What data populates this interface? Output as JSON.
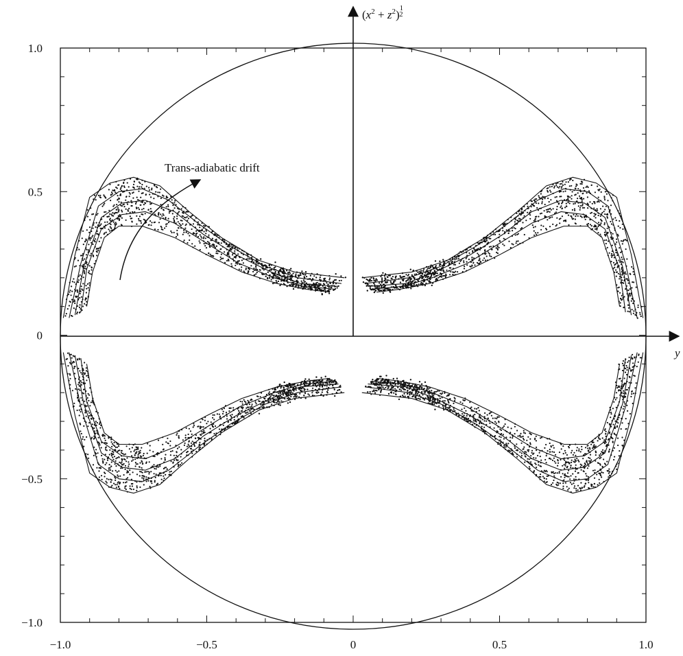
{
  "chart_data": {
    "type": "scatter",
    "title": "",
    "xlabel": "y",
    "ylabel_parts": {
      "open": "(",
      "x": "x",
      "two": "2",
      "plus": " + ",
      "z": "z",
      "close": ")",
      "exp_num": "1",
      "exp_den": "2"
    },
    "xlim": [
      -1.0,
      1.0
    ],
    "ylim": [
      -1.0,
      1.0
    ],
    "x_ticks": [
      {
        "value": -1.0,
        "label": "−1.0"
      },
      {
        "value": -0.5,
        "label": "−0.5"
      },
      {
        "value": 0,
        "label": "0"
      },
      {
        "value": 0.5,
        "label": "0.5"
      },
      {
        "value": 1.0,
        "label": "1.0"
      }
    ],
    "y_ticks": [
      {
        "value": 1.0,
        "label": "1.0"
      },
      {
        "value": 0.5,
        "label": "0.5"
      },
      {
        "value": 0,
        "label": "0"
      },
      {
        "value": -0.5,
        "label": "−0.5"
      },
      {
        "value": -1.0,
        "label": "−1.0"
      }
    ],
    "boundary": {
      "shape": "circle",
      "radius": 1.0
    },
    "annotation": {
      "text": "Trans-adiabatic drift",
      "at": [
        -0.66,
        0.56
      ],
      "arrow_from": [
        -0.8,
        0.2
      ],
      "arrow_to": [
        -0.54,
        0.54
      ]
    },
    "grid": false,
    "series": [
      {
        "region": "upper-left band",
        "curves": [
          [
            [
              -0.99,
              0.06
            ],
            [
              -0.95,
              0.28
            ],
            [
              -0.9,
              0.48
            ],
            [
              -0.83,
              0.53
            ],
            [
              -0.75,
              0.55
            ],
            [
              -0.66,
              0.52
            ],
            [
              -0.56,
              0.43
            ],
            [
              -0.45,
              0.34
            ],
            [
              -0.32,
              0.26
            ],
            [
              -0.2,
              0.22
            ],
            [
              -0.03,
              0.2
            ]
          ],
          [
            [
              -0.97,
              0.06
            ],
            [
              -0.93,
              0.25
            ],
            [
              -0.87,
              0.45
            ],
            [
              -0.8,
              0.5
            ],
            [
              -0.72,
              0.51
            ],
            [
              -0.63,
              0.47
            ],
            [
              -0.53,
              0.39
            ],
            [
              -0.42,
              0.31
            ],
            [
              -0.3,
              0.24
            ],
            [
              -0.19,
              0.2
            ],
            [
              -0.04,
              0.18
            ]
          ],
          [
            [
              -0.95,
              0.07
            ],
            [
              -0.92,
              0.24
            ],
            [
              -0.86,
              0.41
            ],
            [
              -0.79,
              0.46
            ],
            [
              -0.71,
              0.47
            ],
            [
              -0.61,
              0.43
            ],
            [
              -0.51,
              0.35
            ],
            [
              -0.4,
              0.28
            ],
            [
              -0.28,
              0.22
            ],
            [
              -0.18,
              0.18
            ],
            [
              -0.05,
              0.17
            ]
          ],
          [
            [
              -0.93,
              0.08
            ],
            [
              -0.91,
              0.23
            ],
            [
              -0.86,
              0.37
            ],
            [
              -0.79,
              0.42
            ],
            [
              -0.71,
              0.43
            ],
            [
              -0.61,
              0.39
            ],
            [
              -0.5,
              0.32
            ],
            [
              -0.39,
              0.25
            ],
            [
              -0.27,
              0.2
            ],
            [
              -0.17,
              0.17
            ],
            [
              -0.06,
              0.16
            ]
          ],
          [
            [
              -0.91,
              0.1
            ],
            [
              -0.89,
              0.22
            ],
            [
              -0.85,
              0.34
            ],
            [
              -0.8,
              0.38
            ],
            [
              -0.72,
              0.38
            ],
            [
              -0.61,
              0.34
            ],
            [
              -0.5,
              0.28
            ],
            [
              -0.38,
              0.22
            ],
            [
              -0.26,
              0.18
            ],
            [
              -0.16,
              0.16
            ],
            [
              -0.08,
              0.15
            ]
          ]
        ]
      },
      {
        "region": "upper-right band",
        "curves": [
          [
            [
              0.03,
              0.2
            ],
            [
              0.2,
              0.22
            ],
            [
              0.32,
              0.26
            ],
            [
              0.45,
              0.34
            ],
            [
              0.56,
              0.43
            ],
            [
              0.66,
              0.52
            ],
            [
              0.75,
              0.55
            ],
            [
              0.83,
              0.53
            ],
            [
              0.9,
              0.48
            ],
            [
              0.95,
              0.28
            ],
            [
              0.99,
              0.06
            ]
          ],
          [
            [
              0.04,
              0.18
            ],
            [
              0.19,
              0.2
            ],
            [
              0.3,
              0.24
            ],
            [
              0.42,
              0.31
            ],
            [
              0.53,
              0.39
            ],
            [
              0.63,
              0.47
            ],
            [
              0.72,
              0.51
            ],
            [
              0.8,
              0.5
            ],
            [
              0.87,
              0.45
            ],
            [
              0.93,
              0.25
            ],
            [
              0.97,
              0.06
            ]
          ],
          [
            [
              0.05,
              0.17
            ],
            [
              0.18,
              0.18
            ],
            [
              0.28,
              0.22
            ],
            [
              0.4,
              0.28
            ],
            [
              0.51,
              0.35
            ],
            [
              0.61,
              0.43
            ],
            [
              0.71,
              0.47
            ],
            [
              0.79,
              0.46
            ],
            [
              0.86,
              0.41
            ],
            [
              0.92,
              0.24
            ],
            [
              0.95,
              0.07
            ]
          ],
          [
            [
              0.06,
              0.16
            ],
            [
              0.17,
              0.17
            ],
            [
              0.27,
              0.2
            ],
            [
              0.39,
              0.25
            ],
            [
              0.5,
              0.32
            ],
            [
              0.61,
              0.39
            ],
            [
              0.71,
              0.43
            ],
            [
              0.79,
              0.42
            ],
            [
              0.86,
              0.37
            ],
            [
              0.91,
              0.23
            ],
            [
              0.93,
              0.08
            ]
          ],
          [
            [
              0.08,
              0.15
            ],
            [
              0.16,
              0.16
            ],
            [
              0.26,
              0.18
            ],
            [
              0.38,
              0.22
            ],
            [
              0.5,
              0.28
            ],
            [
              0.61,
              0.34
            ],
            [
              0.72,
              0.38
            ],
            [
              0.8,
              0.38
            ],
            [
              0.85,
              0.34
            ],
            [
              0.89,
              0.22
            ],
            [
              0.91,
              0.1
            ]
          ]
        ]
      },
      {
        "region": "lower-left band",
        "curves": [
          [
            [
              -0.99,
              -0.06
            ],
            [
              -0.95,
              -0.28
            ],
            [
              -0.9,
              -0.48
            ],
            [
              -0.83,
              -0.53
            ],
            [
              -0.75,
              -0.55
            ],
            [
              -0.66,
              -0.52
            ],
            [
              -0.56,
              -0.43
            ],
            [
              -0.45,
              -0.34
            ],
            [
              -0.32,
              -0.26
            ],
            [
              -0.2,
              -0.22
            ],
            [
              -0.03,
              -0.2
            ]
          ],
          [
            [
              -0.97,
              -0.06
            ],
            [
              -0.93,
              -0.25
            ],
            [
              -0.87,
              -0.45
            ],
            [
              -0.8,
              -0.5
            ],
            [
              -0.72,
              -0.51
            ],
            [
              -0.63,
              -0.47
            ],
            [
              -0.53,
              -0.39
            ],
            [
              -0.42,
              -0.31
            ],
            [
              -0.3,
              -0.24
            ],
            [
              -0.19,
              -0.2
            ],
            [
              -0.04,
              -0.18
            ]
          ],
          [
            [
              -0.95,
              -0.07
            ],
            [
              -0.92,
              -0.24
            ],
            [
              -0.86,
              -0.41
            ],
            [
              -0.79,
              -0.46
            ],
            [
              -0.71,
              -0.47
            ],
            [
              -0.61,
              -0.43
            ],
            [
              -0.51,
              -0.35
            ],
            [
              -0.4,
              -0.28
            ],
            [
              -0.28,
              -0.22
            ],
            [
              -0.18,
              -0.18
            ],
            [
              -0.05,
              -0.17
            ]
          ],
          [
            [
              -0.93,
              -0.08
            ],
            [
              -0.91,
              -0.23
            ],
            [
              -0.86,
              -0.37
            ],
            [
              -0.79,
              -0.42
            ],
            [
              -0.71,
              -0.43
            ],
            [
              -0.61,
              -0.39
            ],
            [
              -0.5,
              -0.32
            ],
            [
              -0.39,
              -0.25
            ],
            [
              -0.27,
              -0.2
            ],
            [
              -0.17,
              -0.17
            ],
            [
              -0.06,
              -0.16
            ]
          ],
          [
            [
              -0.91,
              -0.1
            ],
            [
              -0.89,
              -0.22
            ],
            [
              -0.85,
              -0.34
            ],
            [
              -0.8,
              -0.38
            ],
            [
              -0.72,
              -0.38
            ],
            [
              -0.61,
              -0.34
            ],
            [
              -0.5,
              -0.28
            ],
            [
              -0.38,
              -0.22
            ],
            [
              -0.26,
              -0.18
            ],
            [
              -0.16,
              -0.16
            ],
            [
              -0.08,
              -0.15
            ]
          ]
        ]
      },
      {
        "region": "lower-right band",
        "curves": [
          [
            [
              0.03,
              -0.2
            ],
            [
              0.2,
              -0.22
            ],
            [
              0.32,
              -0.26
            ],
            [
              0.45,
              -0.34
            ],
            [
              0.56,
              -0.43
            ],
            [
              0.66,
              -0.52
            ],
            [
              0.75,
              -0.55
            ],
            [
              0.83,
              -0.53
            ],
            [
              0.9,
              -0.48
            ],
            [
              0.95,
              -0.28
            ],
            [
              0.99,
              -0.06
            ]
          ],
          [
            [
              0.04,
              -0.18
            ],
            [
              0.19,
              -0.2
            ],
            [
              0.3,
              -0.24
            ],
            [
              0.42,
              -0.31
            ],
            [
              0.53,
              -0.39
            ],
            [
              0.63,
              -0.47
            ],
            [
              0.72,
              -0.51
            ],
            [
              0.8,
              -0.5
            ],
            [
              0.87,
              -0.45
            ],
            [
              0.93,
              -0.25
            ],
            [
              0.97,
              -0.06
            ]
          ],
          [
            [
              0.05,
              -0.17
            ],
            [
              0.18,
              -0.18
            ],
            [
              0.28,
              -0.22
            ],
            [
              0.4,
              -0.28
            ],
            [
              0.51,
              -0.35
            ],
            [
              0.61,
              -0.43
            ],
            [
              0.71,
              -0.47
            ],
            [
              0.79,
              -0.46
            ],
            [
              0.86,
              -0.41
            ],
            [
              0.92,
              -0.24
            ],
            [
              0.95,
              -0.07
            ]
          ],
          [
            [
              0.06,
              -0.16
            ],
            [
              0.17,
              -0.17
            ],
            [
              0.27,
              -0.2
            ],
            [
              0.39,
              -0.25
            ],
            [
              0.5,
              -0.32
            ],
            [
              0.61,
              -0.39
            ],
            [
              0.71,
              -0.43
            ],
            [
              0.79,
              -0.42
            ],
            [
              0.86,
              -0.37
            ],
            [
              0.91,
              -0.23
            ],
            [
              0.93,
              -0.08
            ]
          ],
          [
            [
              0.08,
              -0.15
            ],
            [
              0.16,
              -0.16
            ],
            [
              0.26,
              -0.18
            ],
            [
              0.38,
              -0.22
            ],
            [
              0.5,
              -0.28
            ],
            [
              0.61,
              -0.34
            ],
            [
              0.72,
              -0.38
            ],
            [
              0.8,
              -0.38
            ],
            [
              0.85,
              -0.34
            ],
            [
              0.89,
              -0.22
            ],
            [
              0.91,
              -0.1
            ]
          ]
        ]
      }
    ]
  }
}
